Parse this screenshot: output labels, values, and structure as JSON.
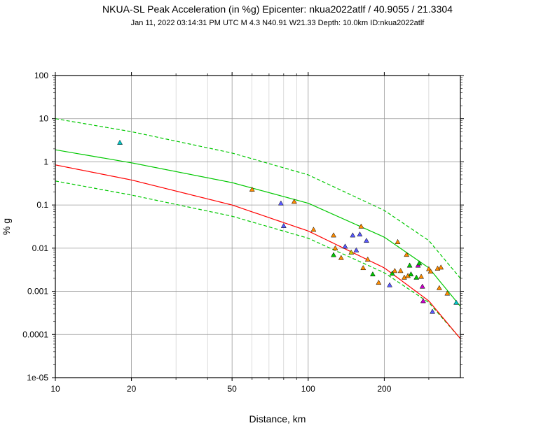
{
  "chart_data": {
    "type": "scatter",
    "title": "NKUA-SL Peak Acceleration (in %g)  Epicenter: nkua2022atlf / 40.9055 / 21.3304",
    "subtitle": "Jan 11, 2022 03:14:31 PM UTC   M 4.3   N40.91 W21.33   Depth: 10.0km   ID:nkua2022atlf",
    "xlabel": "Distance, km",
    "ylabel": "% g",
    "xscale": "log",
    "yscale": "log",
    "xlim": [
      10,
      400
    ],
    "ylim": [
      1e-05,
      100
    ],
    "grid": true,
    "x_ticks": [
      {
        "value": 10,
        "label": "10"
      },
      {
        "value": 20,
        "label": "20"
      },
      {
        "value": 50,
        "label": "50"
      },
      {
        "value": 100,
        "label": "100"
      },
      {
        "value": 200,
        "label": "200"
      }
    ],
    "y_ticks": [
      {
        "value": 100,
        "label": "100"
      },
      {
        "value": 10,
        "label": "10"
      },
      {
        "value": 1,
        "label": "1"
      },
      {
        "value": 0.1,
        "label": "0.1"
      },
      {
        "value": 0.01,
        "label": "0.01"
      },
      {
        "value": 0.001,
        "label": "0.001"
      },
      {
        "value": 0.0001,
        "label": "0.0001"
      },
      {
        "value": 1e-05,
        "label": "1e-05"
      }
    ],
    "curves": [
      {
        "color": "#00c800",
        "style": "solid",
        "x": [
          10,
          20,
          50,
          100,
          200,
          300,
          400
        ],
        "y": [
          1.9,
          0.95,
          0.33,
          0.11,
          0.018,
          0.0035,
          0.00045
        ]
      },
      {
        "color": "#00c800",
        "style": "dashed",
        "x": [
          10,
          20,
          50,
          100,
          200,
          300,
          400
        ],
        "y": [
          10,
          5,
          1.6,
          0.5,
          0.075,
          0.015,
          0.002
        ]
      },
      {
        "color": "#00c800",
        "style": "dashed",
        "x": [
          10,
          20,
          50,
          100,
          200,
          300,
          400
        ],
        "y": [
          0.36,
          0.17,
          0.055,
          0.017,
          0.0027,
          0.00055,
          8e-05
        ]
      },
      {
        "color": "#ff0000",
        "style": "solid",
        "x": [
          10,
          20,
          50,
          100,
          200,
          300,
          400
        ],
        "y": [
          0.85,
          0.38,
          0.1,
          0.025,
          0.0035,
          0.0006,
          8e-05
        ]
      }
    ],
    "points": [
      {
        "x": 18,
        "y": 2.8,
        "color": "#00c8c8"
      },
      {
        "x": 60,
        "y": 0.23,
        "color": "#ff8c00"
      },
      {
        "x": 78,
        "y": 0.11,
        "color": "#5a5aff"
      },
      {
        "x": 88,
        "y": 0.12,
        "color": "#ff8c00"
      },
      {
        "x": 80,
        "y": 0.033,
        "color": "#5a5aff"
      },
      {
        "x": 105,
        "y": 0.027,
        "color": "#ff8c00"
      },
      {
        "x": 126,
        "y": 0.02,
        "color": "#ff8c00"
      },
      {
        "x": 128,
        "y": 0.01,
        "color": "#ff8c00"
      },
      {
        "x": 126,
        "y": 0.007,
        "color": "#00c800"
      },
      {
        "x": 135,
        "y": 0.006,
        "color": "#ff8c00"
      },
      {
        "x": 140,
        "y": 0.011,
        "color": "#5a5aff"
      },
      {
        "x": 148,
        "y": 0.008,
        "color": "#c8c800"
      },
      {
        "x": 150,
        "y": 0.02,
        "color": "#5a5aff"
      },
      {
        "x": 155,
        "y": 0.009,
        "color": "#5a5aff"
      },
      {
        "x": 160,
        "y": 0.021,
        "color": "#5a5aff"
      },
      {
        "x": 162,
        "y": 0.032,
        "color": "#ff8c00"
      },
      {
        "x": 165,
        "y": 0.0035,
        "color": "#ff8c00"
      },
      {
        "x": 170,
        "y": 0.015,
        "color": "#5a5aff"
      },
      {
        "x": 172,
        "y": 0.0055,
        "color": "#ff8c00"
      },
      {
        "x": 180,
        "y": 0.0025,
        "color": "#00c800"
      },
      {
        "x": 190,
        "y": 0.0016,
        "color": "#ff8c00"
      },
      {
        "x": 210,
        "y": 0.0014,
        "color": "#5a5aff"
      },
      {
        "x": 215,
        "y": 0.0026,
        "color": "#00c800"
      },
      {
        "x": 220,
        "y": 0.003,
        "color": "#ff8c00"
      },
      {
        "x": 226,
        "y": 0.014,
        "color": "#ff8c00"
      },
      {
        "x": 232,
        "y": 0.003,
        "color": "#ff8c00"
      },
      {
        "x": 240,
        "y": 0.0021,
        "color": "#ff8c00"
      },
      {
        "x": 245,
        "y": 0.0071,
        "color": "#ff8c00"
      },
      {
        "x": 248,
        "y": 0.0023,
        "color": "#ff8c00"
      },
      {
        "x": 252,
        "y": 0.004,
        "color": "#00c800"
      },
      {
        "x": 255,
        "y": 0.0025,
        "color": "#00c800"
      },
      {
        "x": 268,
        "y": 0.0021,
        "color": "#00c800"
      },
      {
        "x": 272,
        "y": 0.004,
        "color": "#c800c8"
      },
      {
        "x": 275,
        "y": 0.0045,
        "color": "#00c800"
      },
      {
        "x": 280,
        "y": 0.0022,
        "color": "#ff8c00"
      },
      {
        "x": 283,
        "y": 0.0013,
        "color": "#c800c8"
      },
      {
        "x": 285,
        "y": 0.0006,
        "color": "#c800c8"
      },
      {
        "x": 300,
        "y": 0.0033,
        "color": "#ff8c00"
      },
      {
        "x": 305,
        "y": 0.0029,
        "color": "#ff8c00"
      },
      {
        "x": 310,
        "y": 0.00034,
        "color": "#5a5aff"
      },
      {
        "x": 325,
        "y": 0.0034,
        "color": "#ff8c00"
      },
      {
        "x": 330,
        "y": 0.0012,
        "color": "#ff8c00"
      },
      {
        "x": 335,
        "y": 0.0036,
        "color": "#ff8c00"
      },
      {
        "x": 355,
        "y": 0.0009,
        "color": "#ff8c00"
      },
      {
        "x": 385,
        "y": 0.00055,
        "color": "#00c8c8"
      }
    ]
  }
}
